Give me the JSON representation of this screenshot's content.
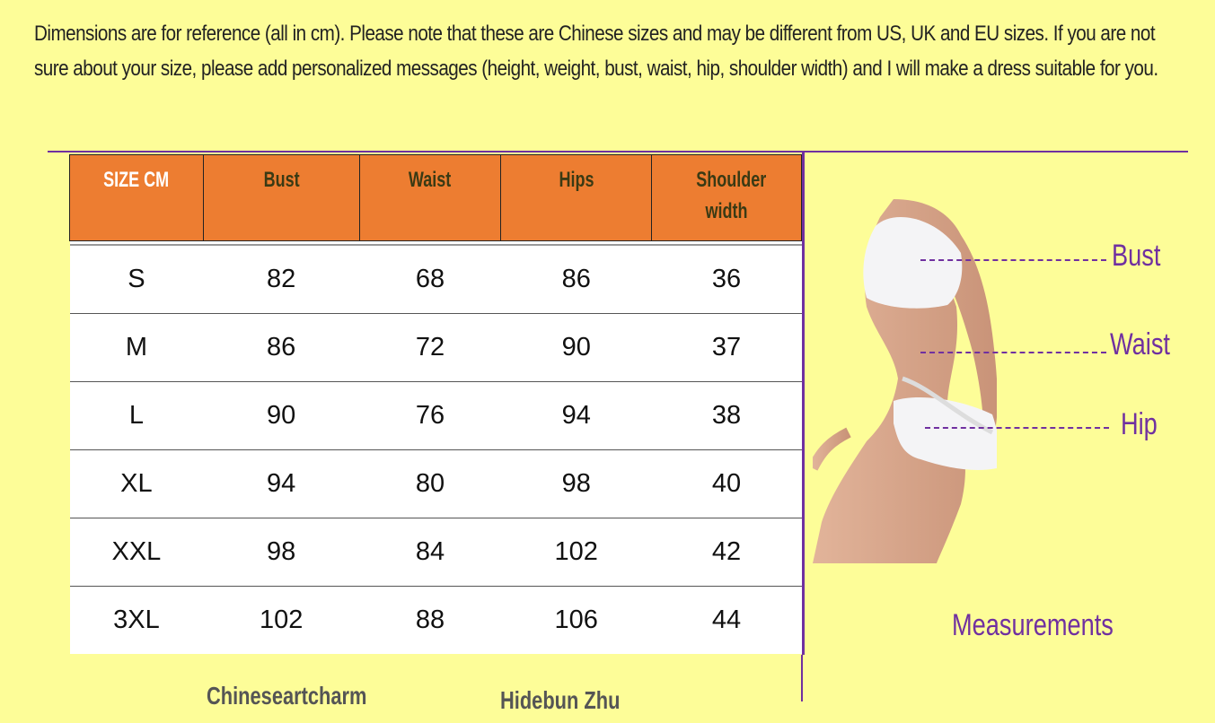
{
  "intro_text": "Dimensions are for reference (all in cm). Please note that these are Chinese sizes and may be different from US, UK and EU sizes. If you are not sure about your size, please add personalized messages (height, weight, bust, waist, hip, shoulder width) and I will make a dress suitable for you.",
  "table": {
    "headers": [
      "SIZE CM",
      "Bust",
      "Waist",
      "Hips",
      "Shoulder width"
    ],
    "rows": [
      [
        "S",
        "82",
        "68",
        "86",
        "36"
      ],
      [
        "M",
        "86",
        "72",
        "90",
        "37"
      ],
      [
        "L",
        "90",
        "76",
        "94",
        "38"
      ],
      [
        "XL",
        "94",
        "80",
        "98",
        "40"
      ],
      [
        "XXL",
        "98",
        "84",
        "102",
        "42"
      ],
      [
        "3XL",
        "102",
        "88",
        "106",
        "44"
      ]
    ]
  },
  "figure": {
    "labels": {
      "bust": "Bust",
      "waist": "Waist",
      "hip": "Hip"
    },
    "caption": "Measurements"
  },
  "footer": {
    "left": "Chineseartcharm",
    "right": "Hidebun Zhu"
  },
  "colors": {
    "background": "#fdfd98",
    "header": "#ed7d31",
    "accent": "#7030a0"
  }
}
